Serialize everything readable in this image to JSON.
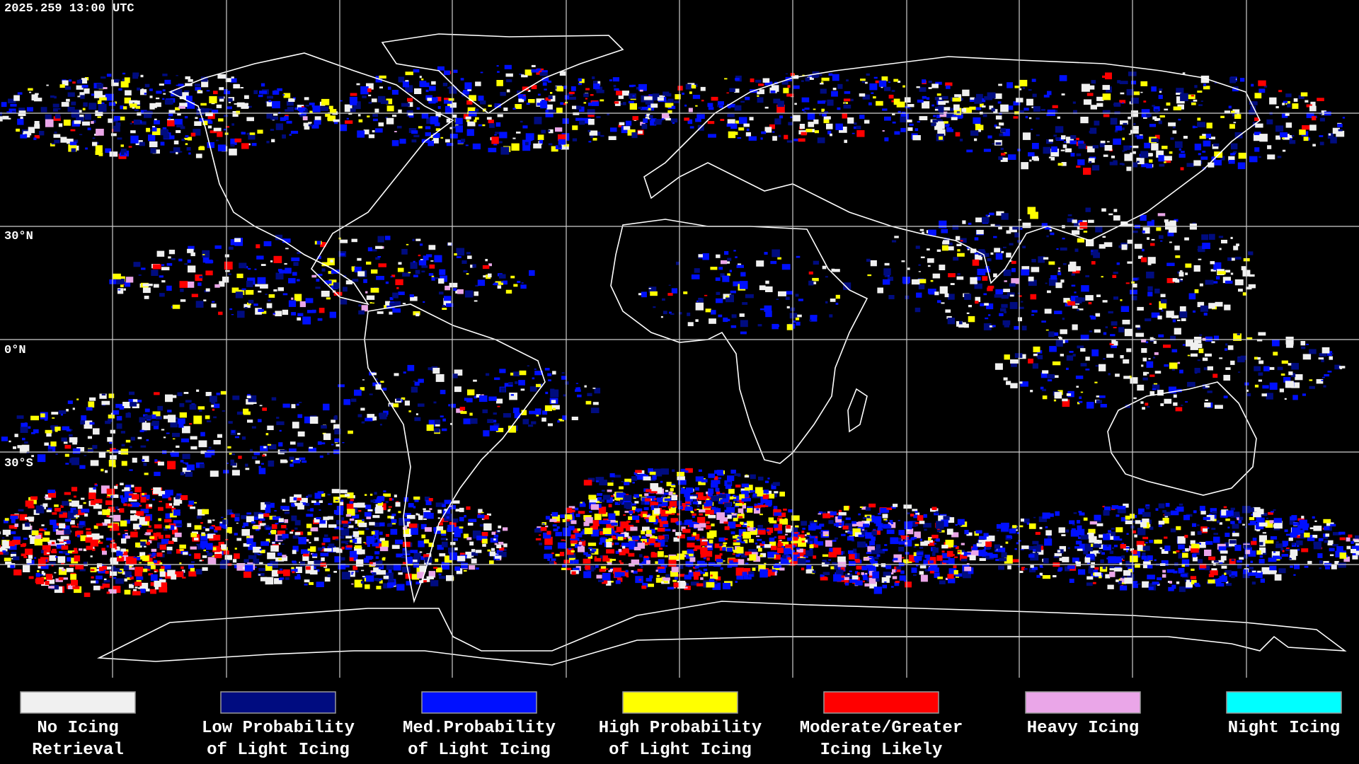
{
  "header": {
    "timestamp": "2025.259 13:00 UTC"
  },
  "map": {
    "latitude_labels": [
      "30°N",
      "0°N",
      "30°S"
    ]
  },
  "legend": {
    "items": [
      {
        "label": [
          "No Icing",
          "Retrieval"
        ],
        "color": "#f0f0f0"
      },
      {
        "label": [
          "Low Probability",
          "of Light Icing"
        ],
        "color": "#000c80"
      },
      {
        "label": [
          "Med.Probability",
          "of Light Icing"
        ],
        "color": "#0010ff"
      },
      {
        "label": [
          "High Probability",
          "of Light Icing"
        ],
        "color": "#ffff00"
      },
      {
        "label": [
          "Moderate/Greater",
          "Icing Likely"
        ],
        "color": "#ff0000"
      },
      {
        "label": [
          "Heavy Icing"
        ],
        "color": "#eaa6e8"
      },
      {
        "label": [
          "Night Icing"
        ],
        "color": "#00ffff"
      }
    ]
  }
}
